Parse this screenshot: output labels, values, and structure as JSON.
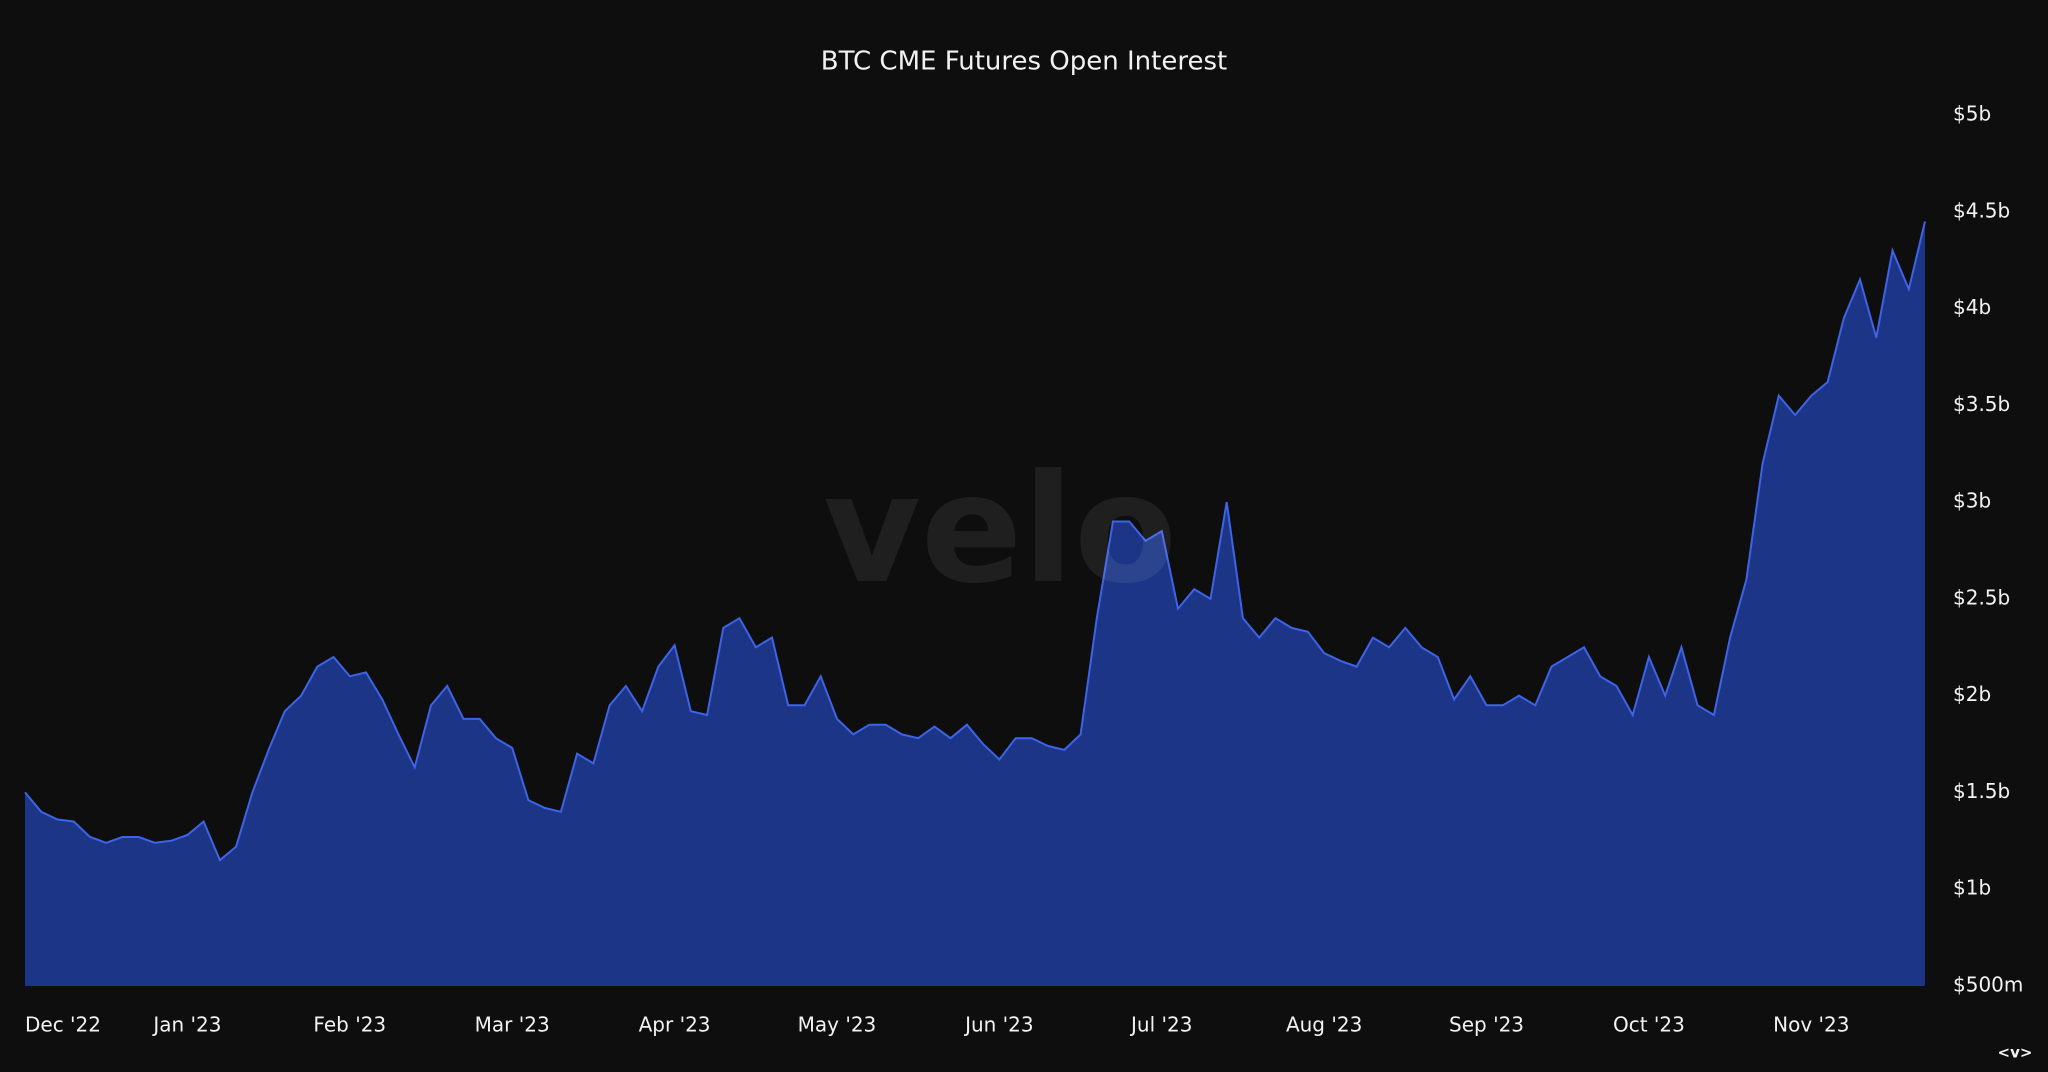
{
  "chart_data": {
    "type": "area",
    "title": "BTC CME Futures Open Interest",
    "watermark": "velo",
    "footer_mark": "<v>",
    "color": "#1d3586",
    "line_color": "#3d63e6",
    "categories": [
      "Dec '22",
      null,
      null,
      null,
      null,
      null,
      null,
      null,
      null,
      null,
      "Jan '23",
      null,
      null,
      null,
      null,
      null,
      null,
      null,
      null,
      null,
      "Feb '23",
      null,
      null,
      null,
      null,
      null,
      null,
      null,
      null,
      null,
      "Mar '23",
      null,
      null,
      null,
      null,
      null,
      null,
      null,
      null,
      null,
      "Apr '23",
      null,
      null,
      null,
      null,
      null,
      null,
      null,
      null,
      null,
      "May '23",
      null,
      null,
      null,
      null,
      null,
      null,
      null,
      null,
      null,
      "Jun '23",
      null,
      null,
      null,
      null,
      null,
      null,
      null,
      null,
      null,
      "Jul '23",
      null,
      null,
      null,
      null,
      null,
      null,
      null,
      null,
      null,
      "Aug '23",
      null,
      null,
      null,
      null,
      null,
      null,
      null,
      null,
      null,
      "Sep '23",
      null,
      null,
      null,
      null,
      null,
      null,
      null,
      null,
      null,
      "Oct '23",
      null,
      null,
      null,
      null,
      null,
      null,
      null,
      null,
      null,
      "Nov '23",
      null,
      null,
      null,
      null,
      null,
      null,
      null
    ],
    "values": [
      1.5,
      1.4,
      1.36,
      1.35,
      1.27,
      1.24,
      1.27,
      1.27,
      1.24,
      1.25,
      1.28,
      1.35,
      1.15,
      1.22,
      1.5,
      1.72,
      1.92,
      2.0,
      2.15,
      2.2,
      2.1,
      2.12,
      1.98,
      1.8,
      1.63,
      1.95,
      2.05,
      1.88,
      1.88,
      1.78,
      1.73,
      1.46,
      1.42,
      1.4,
      1.7,
      1.65,
      1.95,
      2.05,
      1.92,
      2.15,
      2.26,
      1.92,
      1.9,
      2.35,
      2.4,
      2.25,
      2.3,
      1.95,
      1.95,
      2.1,
      1.88,
      1.8,
      1.85,
      1.85,
      1.8,
      1.78,
      1.84,
      1.78,
      1.85,
      1.75,
      1.67,
      1.78,
      1.78,
      1.74,
      1.72,
      1.8,
      2.4,
      2.9,
      2.9,
      2.8,
      2.85,
      2.45,
      2.55,
      2.5,
      3.0,
      2.4,
      2.3,
      2.4,
      2.35,
      2.33,
      2.22,
      2.18,
      2.15,
      2.3,
      2.25,
      2.35,
      2.25,
      2.2,
      1.98,
      2.1,
      1.95,
      1.95,
      2.0,
      1.95,
      2.15,
      2.2,
      2.25,
      2.1,
      2.05,
      1.9,
      2.2,
      2.0,
      2.25,
      1.95,
      1.9,
      2.3,
      2.6,
      3.2,
      3.55,
      3.45,
      3.55,
      3.62,
      3.95,
      4.15,
      3.85,
      4.3,
      4.1,
      4.45
    ],
    "ylim": [
      0.5,
      5
    ],
    "yticks": [
      {
        "value": 0.5,
        "label": "$500m"
      },
      {
        "value": 1,
        "label": "$1b"
      },
      {
        "value": 1.5,
        "label": "$1.5b"
      },
      {
        "value": 2,
        "label": "$2b"
      },
      {
        "value": 2.5,
        "label": "$2.5b"
      },
      {
        "value": 3,
        "label": "$3b"
      },
      {
        "value": 3.5,
        "label": "$3.5b"
      },
      {
        "value": 4,
        "label": "$4b"
      },
      {
        "value": 4.5,
        "label": "$4.5b"
      },
      {
        "value": 5,
        "label": "$5b"
      }
    ]
  }
}
